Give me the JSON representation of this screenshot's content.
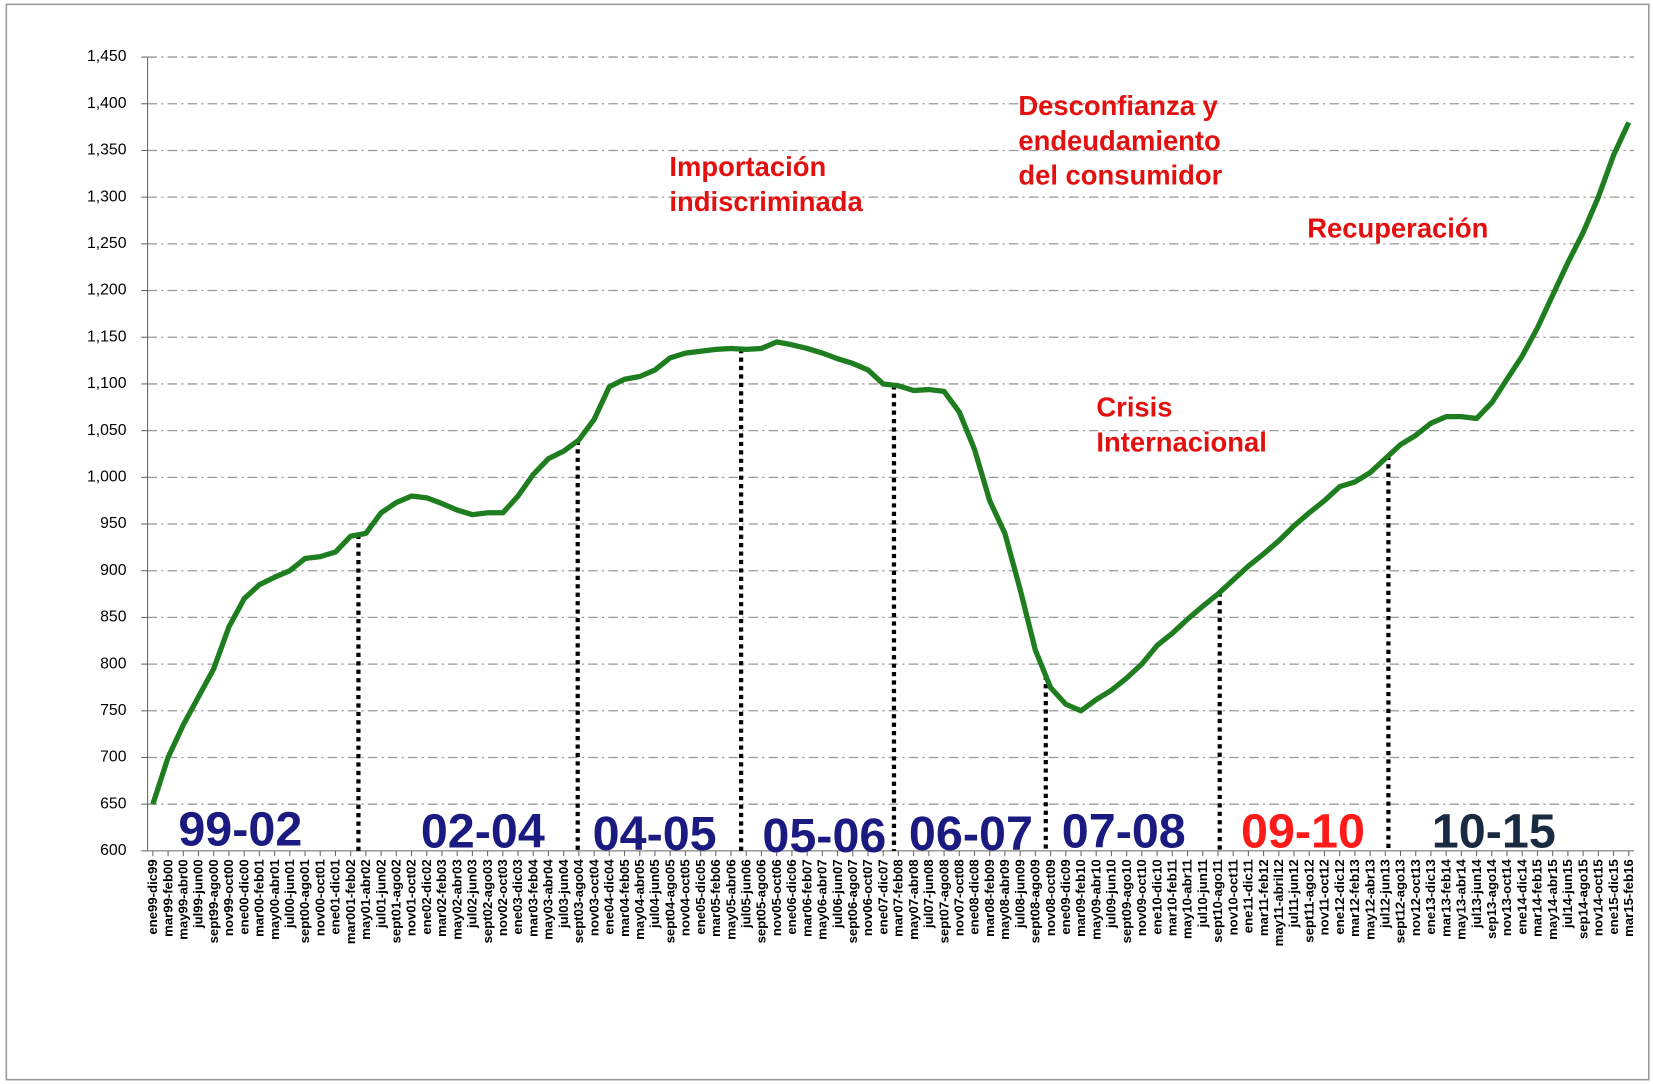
{
  "chart_data": {
    "type": "line",
    "categories": [
      "ene99-dic99",
      "mar99-feb00",
      "may99-abr00",
      "jul99-jun00",
      "sept99-ago00",
      "nov99-oct00",
      "ene00-dic00",
      "mar00-feb01",
      "may00-abr01",
      "jul00-jun01",
      "sept00-ago01",
      "nov00-oct01",
      "ene01-dic01",
      "mar001-feb02",
      "may01-abr02",
      "jul01-jun02",
      "sept01-ago02",
      "nov01-oct02",
      "ene02-dic02",
      "mar02-feb03",
      "may02-abr03",
      "jul02-jun03",
      "sept02-ago03",
      "nov02-oct03",
      "ene03-dic03",
      "mar03-feb04",
      "may03-abr04",
      "jul03-jun04",
      "sept03-ago04",
      "nov03-oct04",
      "ene04-dic04",
      "mar04-feb05",
      "may04-abr05",
      "jul04-jun05",
      "sept04-ago05",
      "nov04-oct05",
      "ene05-dic05",
      "mar05-feb06",
      "may05-abr06",
      "jul05-jun06",
      "sept05-ago06",
      "nov05-oct06",
      "ene06-dic06",
      "mar06-feb07",
      "may06-abr07",
      "jul06-jun07",
      "sept06-ago07",
      "nov06-oct07",
      "ene07-dic07",
      "mar07-feb08",
      "may07-abr08",
      "jul07-jun08",
      "sept07-ago08",
      "nov07-oct08",
      "ene08-dic08",
      "mar08-feb09",
      "may08-abr09",
      "jul08-jun09",
      "sept08-ago09",
      "nov08-oct09",
      "ene09-dic09",
      "mar09-feb10",
      "may09-abr10",
      "jul09-jun10",
      "sept09-ago10",
      "nov09-oct10",
      "ene10-dic10",
      "mar10-feb11",
      "may10-abr11",
      "jul10-jun11",
      "sept10-ago11",
      "nov10-oct11",
      "ene11-dic11",
      "mar11-feb12",
      "may11-abril12",
      "jul11-jun12",
      "sept11-ago12",
      "nov11-oct12",
      "ene12-dic12",
      "mar12-feb13",
      "may12-abr13",
      "jul12-jun13",
      "sept12-ago13",
      "nov12-oct13",
      "ene13-dic13",
      "mar13-feb14",
      "may13-abr14",
      "jul13-jun14",
      "sep13-ago14",
      "nov13-oct14",
      "ene14-dic14",
      "mar14-feb15",
      "may14-abr15",
      "jul14-jun15",
      "sep14-ago15",
      "nov14-oct15",
      "ene15-dic15",
      "mar15-feb16"
    ],
    "values": [
      650,
      700,
      735,
      765,
      795,
      840,
      870,
      885,
      893,
      900,
      913,
      915,
      920,
      937,
      940,
      962,
      973,
      980,
      978,
      972,
      965,
      960,
      962,
      962,
      980,
      1003,
      1020,
      1028,
      1040,
      1062,
      1097,
      1105,
      1108,
      1115,
      1128,
      1133,
      1135,
      1137,
      1138,
      1137,
      1138,
      1145,
      1142,
      1138,
      1133,
      1127,
      1122,
      1115,
      1100,
      1098,
      1093,
      1094,
      1092,
      1070,
      1030,
      975,
      940,
      880,
      815,
      775,
      757,
      750,
      762,
      772,
      785,
      800,
      820,
      833,
      848,
      862,
      875,
      890,
      905,
      918,
      932,
      948,
      962,
      975,
      990,
      995,
      1005,
      1020,
      1035,
      1045,
      1058,
      1065,
      1065,
      1063,
      1080,
      1105,
      1130,
      1160,
      1195,
      1230,
      1262,
      1300,
      1345,
      1380
    ],
    "color": "#1e7d1e",
    "ylim": [
      600,
      1450
    ],
    "yticks": [
      600,
      650,
      700,
      750,
      800,
      850,
      900,
      950,
      {
        "value": 1000,
        "label": "1,000"
      },
      {
        "value": 1050,
        "label": "1,050"
      },
      {
        "value": 1100,
        "label": "1,100"
      },
      {
        "value": 1150,
        "label": "1,150"
      },
      {
        "value": 1200,
        "label": "1,200"
      },
      {
        "value": 1250,
        "label": "1,250"
      },
      {
        "value": 1300,
        "label": "1,300"
      },
      {
        "value": 1350,
        "label": "1,350"
      },
      {
        "value": 1400,
        "label": "1,400"
      },
      {
        "value": 1450,
        "label": "1,450"
      }
    ],
    "grid": true,
    "annotations": [
      {
        "lines": [
          "Importación",
          "indiscriminada"
        ],
        "color": "#e31010"
      },
      {
        "lines": [
          "Desconfianza y",
          "endeudamiento",
          "del consumidor"
        ],
        "color": "#e31010"
      },
      {
        "lines": [
          "Recuperación"
        ],
        "color": "#e31010"
      },
      {
        "lines": [
          "Crisis",
          "Internacional"
        ],
        "color": "#e31010"
      }
    ],
    "periods": [
      {
        "label": "99-02",
        "color": "#1a1a80"
      },
      {
        "label": "02-04",
        "color": "#1a1a80"
      },
      {
        "label": "04-05",
        "color": "#1a1a80"
      },
      {
        "label": "05-06",
        "color": "#1a1a80"
      },
      {
        "label": "06-07",
        "color": "#1a1a80"
      },
      {
        "label": "07-08",
        "color": "#1a1a80"
      },
      {
        "label": "09-10",
        "color": "#ff1a1a"
      },
      {
        "label": "10-15",
        "color": "#1a2a40"
      }
    ]
  }
}
